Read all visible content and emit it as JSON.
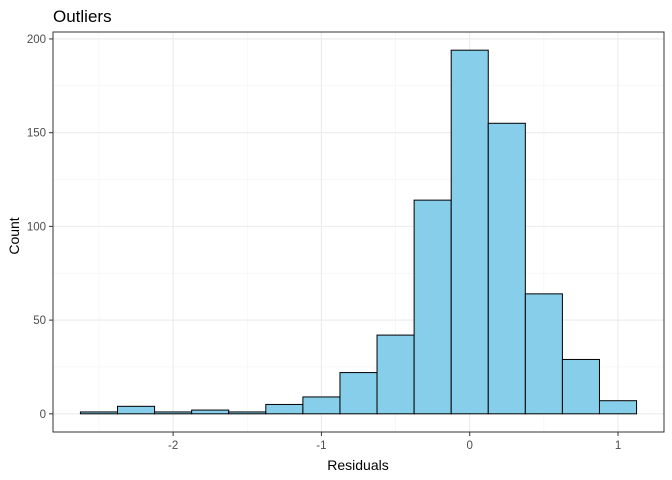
{
  "chart_data": {
    "type": "bar",
    "title": "Outliers",
    "xlabel": "Residuals",
    "ylabel": "Count",
    "bin_width": 0.25,
    "bins": [
      {
        "x0": -2.625,
        "x1": -2.375,
        "count": 1
      },
      {
        "x0": -2.375,
        "x1": -2.125,
        "count": 4
      },
      {
        "x0": -2.125,
        "x1": -1.875,
        "count": 1
      },
      {
        "x0": -1.875,
        "x1": -1.625,
        "count": 2
      },
      {
        "x0": -1.625,
        "x1": -1.375,
        "count": 1
      },
      {
        "x0": -1.375,
        "x1": -1.125,
        "count": 5
      },
      {
        "x0": -1.125,
        "x1": -0.875,
        "count": 9
      },
      {
        "x0": -0.875,
        "x1": -0.625,
        "count": 22
      },
      {
        "x0": -0.625,
        "x1": -0.375,
        "count": 42
      },
      {
        "x0": -0.375,
        "x1": -0.125,
        "count": 114
      },
      {
        "x0": -0.125,
        "x1": 0.125,
        "count": 194
      },
      {
        "x0": 0.125,
        "x1": 0.375,
        "count": 155
      },
      {
        "x0": 0.375,
        "x1": 0.625,
        "count": 64
      },
      {
        "x0": 0.625,
        "x1": 0.875,
        "count": 29
      },
      {
        "x0": 0.875,
        "x1": 1.125,
        "count": 7
      }
    ],
    "xlim": [
      -2.81,
      1.31
    ],
    "ylim": [
      -9.7,
      203.7
    ],
    "x_ticks": [
      -2,
      -1,
      0,
      1
    ],
    "x_tick_labels": [
      "-2",
      "-1",
      "0",
      "1"
    ],
    "y_ticks": [
      0,
      50,
      100,
      150,
      200
    ],
    "y_tick_labels": [
      "0",
      "50",
      "100",
      "150",
      "200"
    ],
    "grid": true,
    "colors": {
      "bar_fill": "#87ceeb",
      "bar_stroke": "#000000",
      "major_grid": "#ebebeb",
      "minor_grid": "#f2f2f2",
      "panel_border": "#333333",
      "tick_text": "#4d4d4d"
    }
  }
}
